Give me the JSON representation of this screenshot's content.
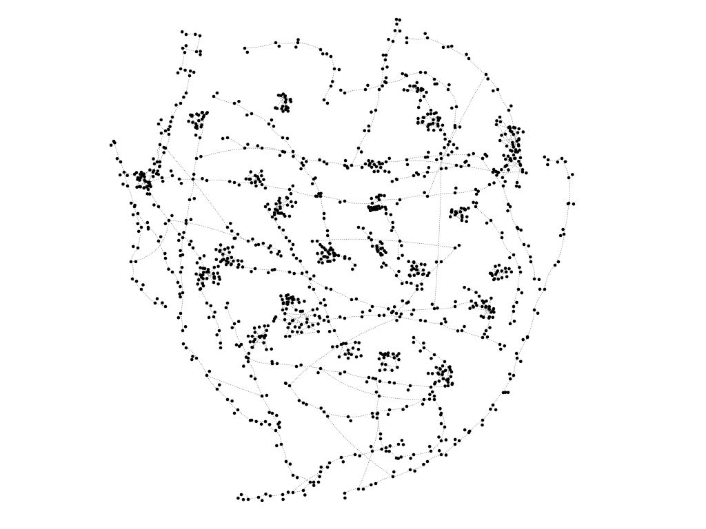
{
  "colors": {
    "background": "#ffffff",
    "node": "#000000",
    "edge": "#555555"
  },
  "graph": {
    "description_type": "network-graph",
    "node_shape": "dot",
    "edge_style": "thin-dotted"
  }
}
